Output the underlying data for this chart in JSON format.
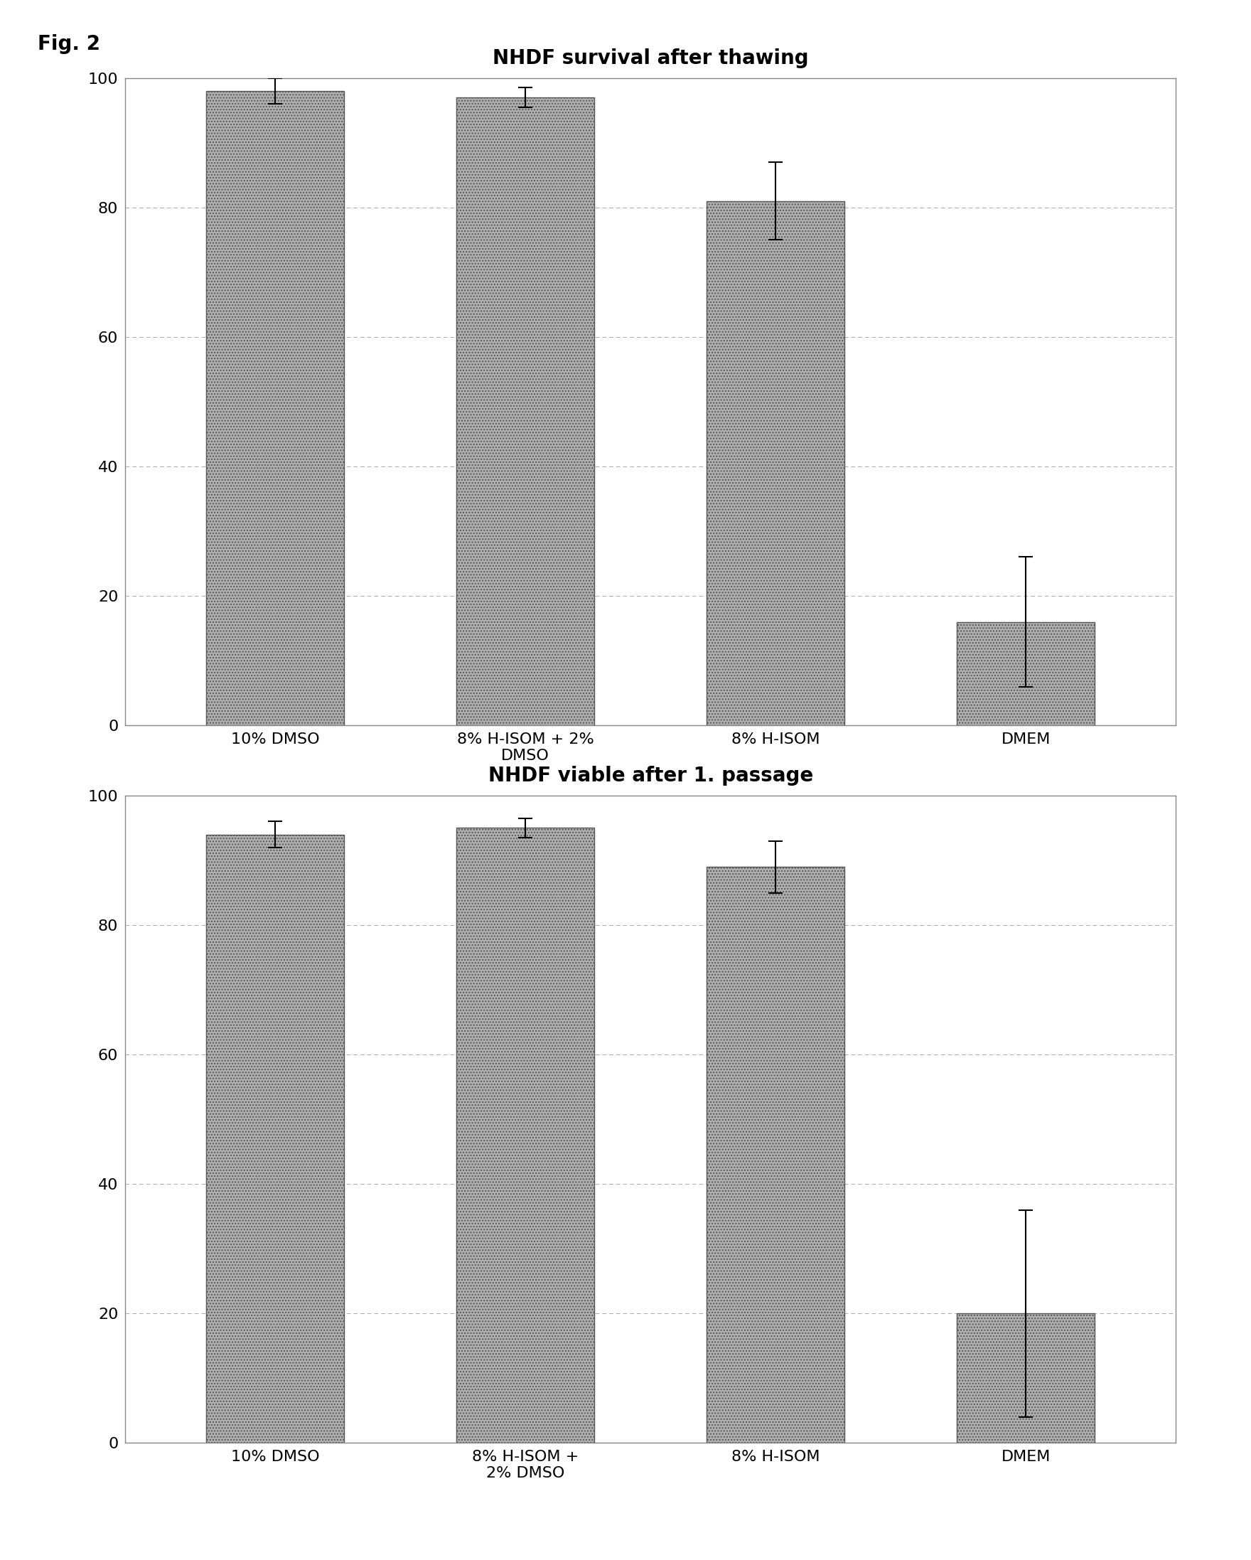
{
  "chart1": {
    "title": "NHDF survival after thawing",
    "categories": [
      "10% DMSO",
      "8% H-ISOM + 2%\nDMSO",
      "8% H-ISOM",
      "DMEM"
    ],
    "values": [
      98,
      97,
      81,
      16
    ],
    "errors": [
      2,
      1.5,
      6,
      10
    ],
    "ylim": [
      0,
      100
    ],
    "yticks": [
      0,
      20,
      40,
      60,
      80,
      100
    ]
  },
  "chart2": {
    "title": "NHDF viable after 1. passage",
    "categories": [
      "10% DMSO",
      "8% H-ISOM +\n2% DMSO",
      "8% H-ISOM",
      "DMEM"
    ],
    "values": [
      94,
      95,
      89,
      20
    ],
    "errors": [
      2,
      1.5,
      4,
      16
    ],
    "ylim": [
      0,
      100
    ],
    "yticks": [
      0,
      20,
      40,
      60,
      80,
      100
    ]
  },
  "bar_color": "#b0b0b0",
  "bar_edgecolor": "#555555",
  "bar_width": 0.55,
  "fig_label": "Fig. 2",
  "background_color": "#ffffff",
  "title_fontsize": 20,
  "tick_fontsize": 16,
  "fig_label_fontsize": 20
}
